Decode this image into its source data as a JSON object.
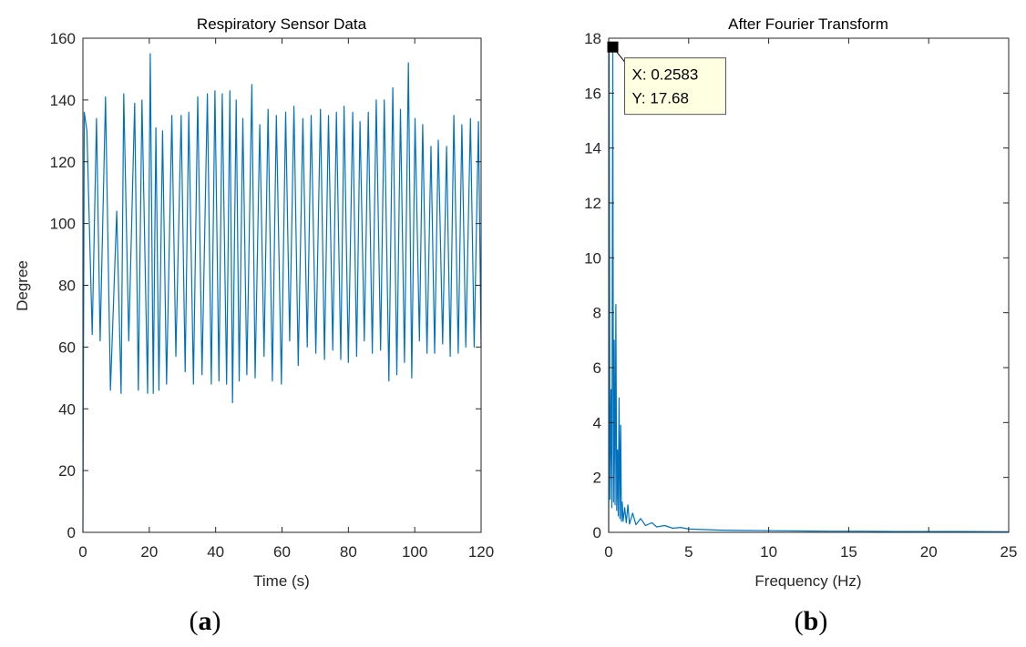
{
  "colors": {
    "series": "#0072bd",
    "axis": "#262626",
    "datatip_bg": "#ffffe1",
    "marker": "#000000"
  },
  "panel_labels": {
    "a": {
      "open": "(",
      "letter": "a",
      "close": ")"
    },
    "b": {
      "open": "(",
      "letter": "b",
      "close": ")"
    }
  },
  "chart_data": [
    {
      "type": "line",
      "title": "Respiratory Sensor Data",
      "xlabel": "Time (s)",
      "ylabel": "Degree",
      "xlim": [
        0,
        120
      ],
      "ylim": [
        0,
        160
      ],
      "xticks": [
        0,
        20,
        40,
        60,
        80,
        100,
        120
      ],
      "yticks": [
        0,
        20,
        40,
        60,
        80,
        100,
        120,
        140,
        160
      ],
      "grid": false,
      "series": [
        {
          "x": [
            0,
            0.4,
            1.2,
            2.8,
            4.1,
            5.2,
            6.8,
            8.3,
            10.2,
            11.5,
            12.3,
            13.8,
            15.6,
            16.7,
            17.8,
            19.5,
            20.3,
            21.2,
            22.0,
            22.9,
            24.0,
            25.2,
            26.8,
            28.0,
            29.6,
            30.8,
            31.9,
            33.3,
            34.6,
            35.9,
            37.5,
            38.7,
            39.8,
            41.0,
            42.0,
            43.3,
            44.3,
            45.1,
            46.2,
            47.1,
            48.2,
            49.4,
            50.9,
            51.9,
            53.3,
            54.6,
            55.8,
            57.1,
            58.3,
            59.8,
            61.1,
            62.3,
            63.6,
            64.9,
            66.3,
            67.6,
            68.8,
            70.2,
            71.6,
            72.8,
            74.0,
            75.3,
            76.4,
            77.7,
            78.7,
            80.0,
            81.3,
            82.5,
            83.5,
            84.8,
            86.0,
            87.2,
            88.4,
            89.7,
            90.8,
            92.2,
            93.4,
            94.6,
            95.7,
            96.9,
            98.1,
            99.1,
            100.1,
            101.4,
            102.4,
            103.7,
            104.9,
            106.0,
            107.1,
            108.4,
            109.6,
            110.7,
            111.8,
            113.1,
            114.2,
            115.4,
            116.8,
            117.9,
            119.2,
            120.0
          ],
          "y": [
            0,
            136,
            130,
            64,
            134,
            62,
            141,
            46,
            104,
            45,
            142,
            62,
            139,
            46,
            140,
            45,
            155,
            45,
            131,
            46,
            130,
            48,
            135,
            57,
            135,
            52,
            136,
            48,
            141,
            51,
            142,
            48,
            143,
            49,
            142,
            48,
            143,
            42,
            140,
            49,
            134,
            51,
            145,
            50,
            132,
            57,
            137,
            49,
            135,
            48,
            136,
            62,
            138,
            54,
            134,
            60,
            135,
            58,
            137,
            56,
            135,
            59,
            136,
            56,
            138,
            55,
            136,
            57,
            133,
            62,
            136,
            58,
            140,
            59,
            140,
            49,
            144,
            51,
            137,
            55,
            152,
            50,
            134,
            62,
            132,
            58,
            125,
            58,
            127,
            61,
            125,
            57,
            135,
            58,
            132,
            60,
            134,
            60,
            133,
            60
          ]
        }
      ]
    },
    {
      "type": "line",
      "title": "After Fourier Transform",
      "xlabel": "Frequency (Hz)",
      "ylabel": "",
      "xlim": [
        0,
        25
      ],
      "ylim": [
        0,
        18
      ],
      "xticks": [
        0,
        5,
        10,
        15,
        20,
        25
      ],
      "yticks": [
        0,
        2,
        4,
        6,
        8,
        10,
        12,
        14,
        16,
        18
      ],
      "grid": false,
      "series": [
        {
          "x": [
            0,
            0.03,
            0.08,
            0.15,
            0.2,
            0.2583,
            0.3,
            0.35,
            0.4,
            0.45,
            0.5,
            0.55,
            0.6,
            0.65,
            0.7,
            0.75,
            0.8,
            0.85,
            0.9,
            1.0,
            1.1,
            1.2,
            1.3,
            1.5,
            1.7,
            2.0,
            2.3,
            2.7,
            3.0,
            3.5,
            4.0,
            4.5,
            5.0,
            6.0,
            7.0,
            8.0,
            10.0,
            12.0,
            14.0,
            16.0,
            18.0,
            20.0,
            22.0,
            25.0
          ],
          "y": [
            0,
            17.6,
            1.2,
            5.2,
            0.9,
            17.68,
            1.1,
            7.0,
            1.0,
            8.3,
            0.8,
            3.0,
            0.6,
            4.9,
            0.5,
            3.9,
            0.4,
            1.1,
            0.4,
            0.9,
            0.35,
            1.0,
            0.3,
            0.7,
            0.28,
            0.5,
            0.25,
            0.35,
            0.2,
            0.25,
            0.15,
            0.18,
            0.12,
            0.1,
            0.08,
            0.07,
            0.06,
            0.05,
            0.04,
            0.04,
            0.03,
            0.03,
            0.03,
            0.02
          ]
        }
      ],
      "datatip": {
        "x_text": "X: 0.2583",
        "y_text": "Y: 17.68",
        "x": 0.2583,
        "y": 17.68
      }
    }
  ]
}
